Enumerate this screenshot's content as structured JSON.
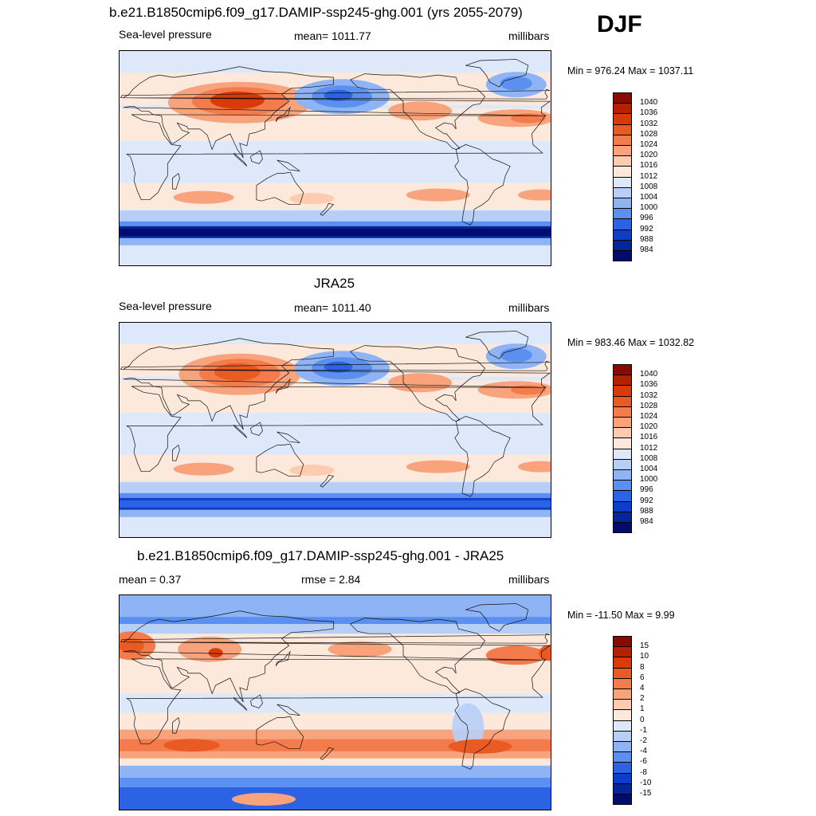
{
  "season": "DJF",
  "panels": [
    {
      "title": "b.e21.B1850cmip6.f09_g17.DAMIP-ssp245-ghg.001 (yrs 2055-2079)",
      "left_label": "Sea-level pressure",
      "center_label": "mean= 1011.77",
      "right_label": "millibars",
      "range_text": "Min = 976.24 Max = 1037.11",
      "map_kind": "model"
    },
    {
      "title": "JRA25",
      "left_label": "Sea-level pressure",
      "center_label": "mean= 1011.40",
      "right_label": "millibars",
      "range_text": "Min = 983.46 Max = 1032.82",
      "map_kind": "obs"
    },
    {
      "title": "b.e21.B1850cmip6.f09_g17.DAMIP-ssp245-ghg.001 - JRA25",
      "left_label": "mean =   0.37",
      "center_label": "rmse =   2.84",
      "right_label": "millibars",
      "range_text": "Min = -11.50 Max =   9.99",
      "map_kind": "diff"
    }
  ],
  "colorbar_abs": {
    "labels": [
      "1040",
      "1036",
      "1032",
      "1028",
      "1024",
      "1020",
      "1016",
      "1012",
      "1008",
      "1004",
      "1000",
      "996",
      "992",
      "988",
      "984"
    ],
    "colors": [
      "#8b0a00",
      "#b52000",
      "#d83a0a",
      "#ea5a23",
      "#f47c4c",
      "#f8a37c",
      "#fccbb0",
      "#fde9dc",
      "#dde9fb",
      "#b7cff7",
      "#8fb4f5",
      "#5b8ff0",
      "#2b63e4",
      "#0e3dc9",
      "#052699",
      "#020b6e"
    ]
  },
  "colorbar_diff": {
    "labels": [
      "15",
      "10",
      "8",
      "6",
      "4",
      "2",
      "1",
      "0",
      "-1",
      "-2",
      "-4",
      "-6",
      "-8",
      "-10",
      "-15"
    ],
    "colors": [
      "#8b0a00",
      "#b52000",
      "#d83a0a",
      "#ea5a23",
      "#f47c4c",
      "#f8a37c",
      "#fccbb0",
      "#fde9dc",
      "#dde9fb",
      "#b7cff7",
      "#8fb4f5",
      "#5b8ff0",
      "#2b63e4",
      "#0e3dc9",
      "#052699",
      "#020b6e"
    ]
  }
}
